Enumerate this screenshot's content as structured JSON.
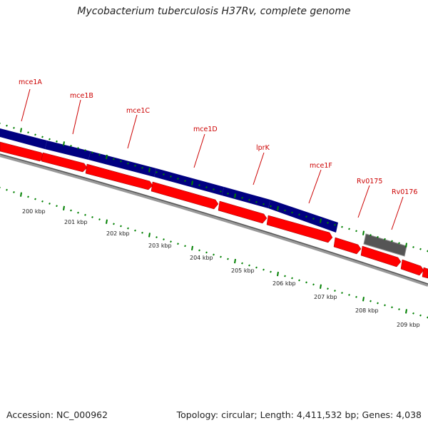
{
  "title": "Mycobacterium tuberculosis H37Rv, complete genome",
  "accession": "Accession: NC_000962",
  "summary": "Topology: circular; Length: 4,411,532 bp; Genes: 4,038",
  "colors": {
    "forward_feature": "#000080",
    "reverse_feature": "#ff0000",
    "other_feature": "#555555",
    "tick": "#008000",
    "label": "#cc0000"
  },
  "features": [
    {
      "label": "mce1A",
      "strand": "+"
    },
    {
      "label": "mce1B",
      "strand": "+"
    },
    {
      "label": "mce1C",
      "strand": "+"
    },
    {
      "label": "mce1D",
      "strand": "+"
    },
    {
      "label": "lprK",
      "strand": "+"
    },
    {
      "label": "mce1F",
      "strand": "+"
    },
    {
      "label": "Rv0175",
      "strand": "other"
    },
    {
      "label": "Rv0176",
      "strand": "-"
    }
  ],
  "kbp_labels": [
    "200 kbp",
    "201 kbp",
    "202 kbp",
    "203 kbp",
    "204 kbp",
    "205 kbp",
    "206 kbp",
    "207 kbp",
    "208 kbp",
    "209 kbp"
  ]
}
